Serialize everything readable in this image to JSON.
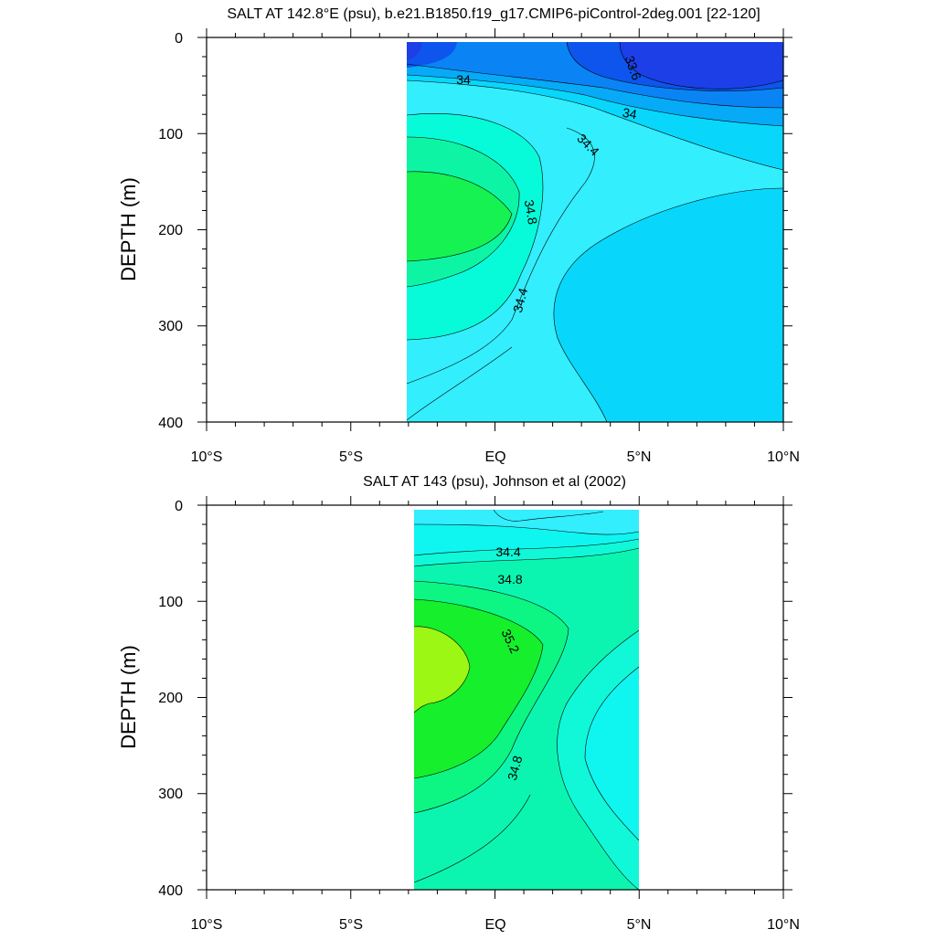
{
  "chart_data": [
    {
      "type": "contour",
      "title": "SALT AT 142.8°E (psu), b.e21.B1850.f19_g17.CMIP6-piControl-2deg.001 [22-120]",
      "ylabel": "DEPTH (m)",
      "xlabel": "",
      "x_ticks": [
        "10°S",
        "5°S",
        "EQ",
        "5°N",
        "10°N"
      ],
      "y_ticks": [
        "0",
        "100",
        "200",
        "300",
        "400"
      ],
      "xlim": [
        -10,
        10
      ],
      "ylim": [
        0,
        400
      ],
      "y_inverted": true,
      "data_extent_x": [
        -3,
        10
      ],
      "data_extent_y": [
        4,
        400
      ],
      "contour_labels": [
        {
          "text": "34",
          "x": -1.1,
          "y": 43
        },
        {
          "text": "33.6",
          "x": 4.6,
          "y": 33
        },
        {
          "text": "34",
          "x": 4.6,
          "y": 80
        },
        {
          "text": "34.4",
          "x": 3.1,
          "y": 114
        },
        {
          "text": "34.8",
          "x": 1.1,
          "y": 181
        },
        {
          "text": "34.4",
          "x": 1.0,
          "y": 284
        }
      ],
      "fill_levels": [
        {
          "salt": "<33.6",
          "color": "#1d3fe7"
        },
        {
          "salt": "33.6-33.8",
          "color": "#0d55ec"
        },
        {
          "salt": "33.8-34.0",
          "color": "#0a84f4"
        },
        {
          "salt": "34.0-34.2",
          "color": "#06aaf7"
        },
        {
          "salt": "34.2-34.4",
          "color": "#08d7fb"
        },
        {
          "salt": "34.4-34.6",
          "color": "#33eefd"
        },
        {
          "salt": "34.6-34.8",
          "color": "#08fbd8"
        },
        {
          "salt": "34.8-35.0",
          "color": "#0df5a4"
        },
        {
          "salt": ">35.0",
          "color": "#15f251"
        }
      ]
    },
    {
      "type": "contour",
      "title": "SALT AT 143 (psu), Johnson et al (2002)",
      "ylabel": "DEPTH (m)",
      "xlabel": "",
      "x_ticks": [
        "10°S",
        "5°S",
        "EQ",
        "5°N",
        "10°N"
      ],
      "y_ticks": [
        "0",
        "100",
        "200",
        "300",
        "400"
      ],
      "xlim": [
        -10,
        10
      ],
      "ylim": [
        0,
        400
      ],
      "y_inverted": true,
      "data_extent_x": [
        -2.8,
        5
      ],
      "data_extent_y": [
        4,
        400
      ],
      "contour_labels": [
        {
          "text": "34.4",
          "x": 0.4,
          "y": 48
        },
        {
          "text": "34.8",
          "x": 0.5,
          "y": 76
        },
        {
          "text": "35.2",
          "x": 0.4,
          "y": 146
        },
        {
          "text": "34.8",
          "x": 0.8,
          "y": 272
        }
      ],
      "fill_levels": [
        {
          "salt": "34.2-34.4",
          "color": "#33eefd"
        },
        {
          "salt": "34.4-34.6",
          "color": "#0ff6f0"
        },
        {
          "salt": "34.6-34.8",
          "color": "#10f8d8"
        },
        {
          "salt": "34.8-35.0",
          "color": "#0cf5b0"
        },
        {
          "salt": "35.0-35.2",
          "color": "#0df582"
        },
        {
          "salt": "35.2-35.4",
          "color": "#15ef2c"
        },
        {
          "salt": ">35.4",
          "color": "#9bf713"
        }
      ]
    }
  ]
}
